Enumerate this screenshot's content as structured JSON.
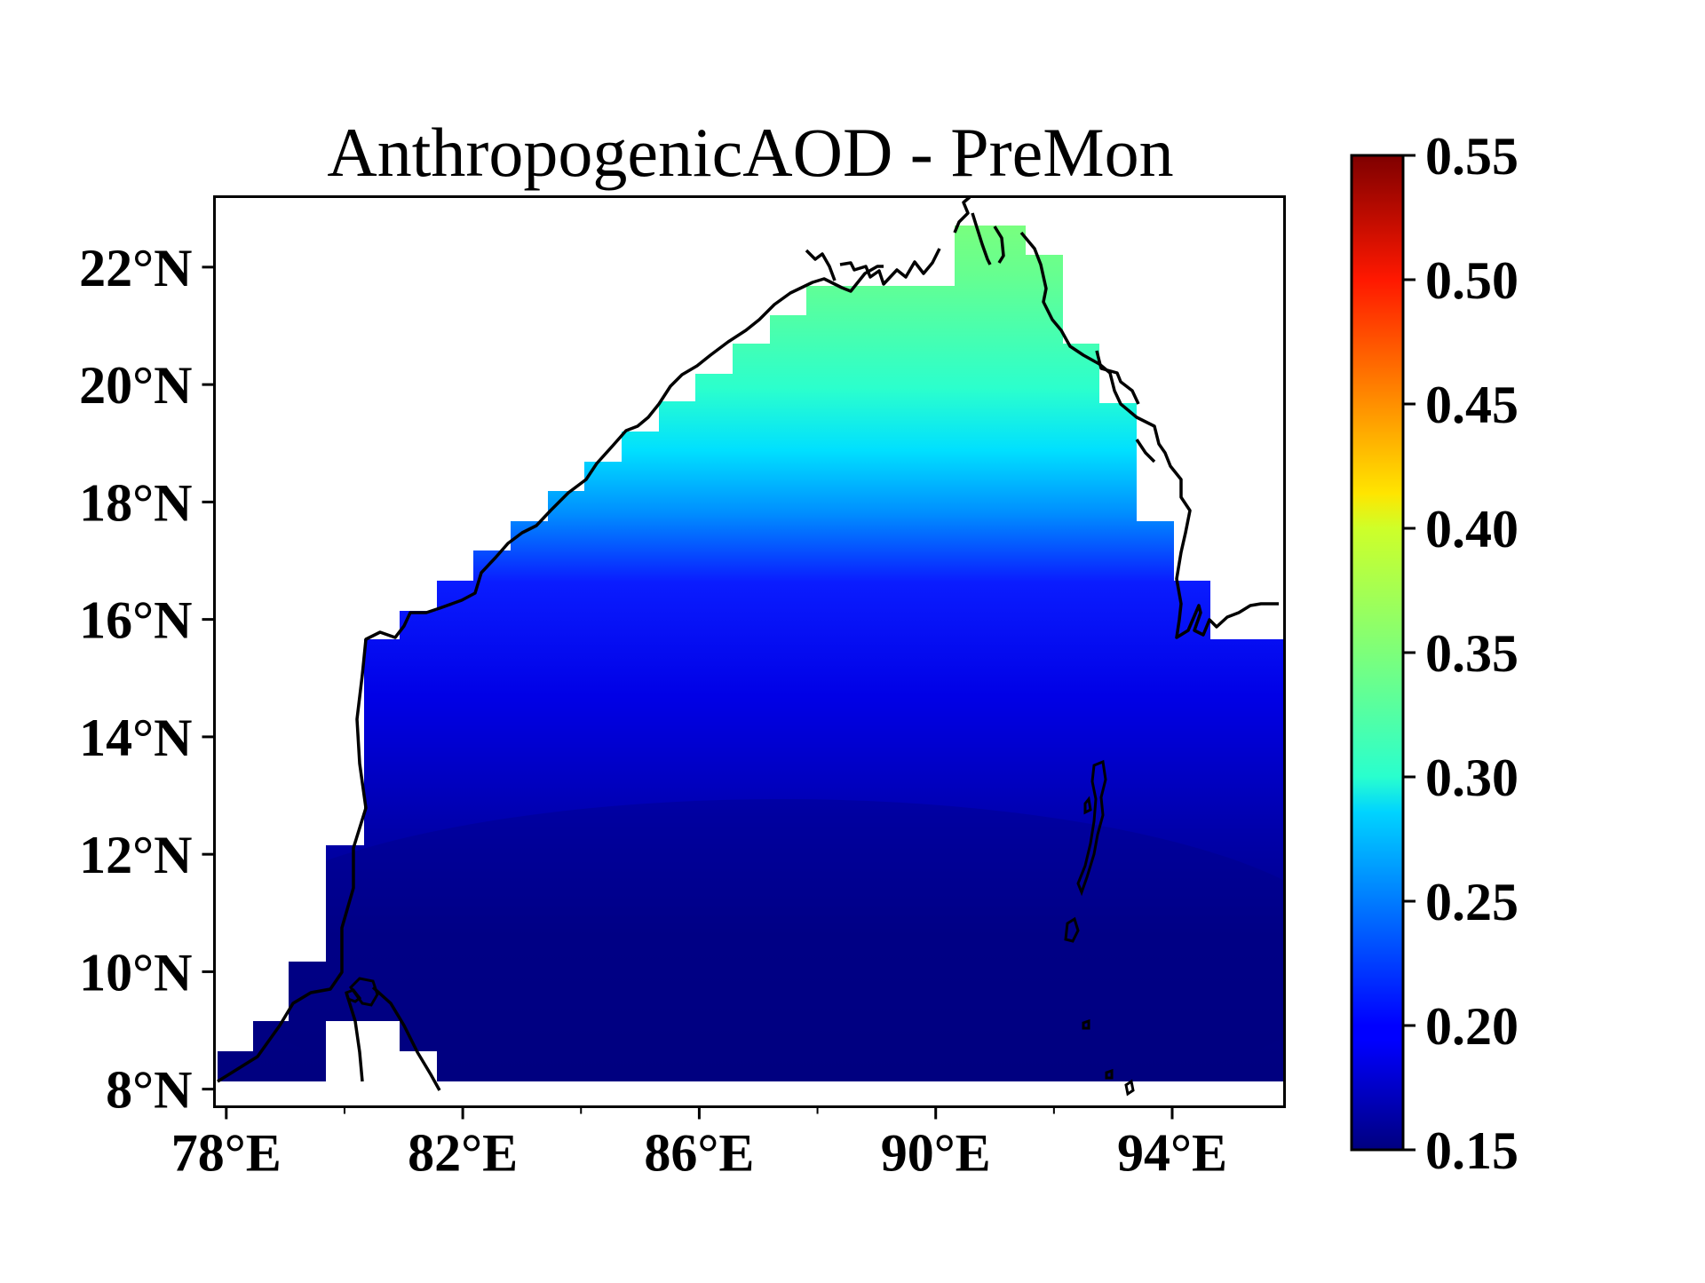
{
  "title": "AnthropogenicAOD - PreMon",
  "map": {
    "lon_range": [
      77.8,
      95.9
    ],
    "lat_range": [
      7.7,
      23.2
    ],
    "x_ticks": [
      {
        "lon": 78,
        "label": "78°E"
      },
      {
        "lon": 82,
        "label": "82°E"
      },
      {
        "lon": 86,
        "label": "86°E"
      },
      {
        "lon": 90,
        "label": "90°E"
      },
      {
        "lon": 94,
        "label": "94°E"
      }
    ],
    "x_minor_ticks": [
      80,
      84,
      88,
      92
    ],
    "y_ticks": [
      {
        "lat": 8,
        "label": "8°N"
      },
      {
        "lat": 10,
        "label": "10°N"
      },
      {
        "lat": 12,
        "label": "12°N"
      },
      {
        "lat": 14,
        "label": "14°N"
      },
      {
        "lat": 16,
        "label": "16°N"
      },
      {
        "lat": 18,
        "label": "18°N"
      },
      {
        "lat": 20,
        "label": "20°N"
      },
      {
        "lat": 22,
        "label": "22°N"
      }
    ]
  },
  "colorbar": {
    "colormap": "jet",
    "range": [
      0.15,
      0.55
    ],
    "ticks": [
      "0.15",
      "0.20",
      "0.25",
      "0.30",
      "0.35",
      "0.40",
      "0.45",
      "0.50",
      "0.55"
    ]
  },
  "field_summary": [
    {
      "region": "northern head of bay (~21-22°N)",
      "value": 0.35
    },
    {
      "region": "~19°N",
      "value": 0.29
    },
    {
      "region": "~17°N",
      "value": 0.22
    },
    {
      "region": "15-16°N",
      "value": 0.19
    },
    {
      "region": "~13°N",
      "value": 0.17
    },
    {
      "region": "south of 11°N",
      "value": 0.15
    }
  ]
}
